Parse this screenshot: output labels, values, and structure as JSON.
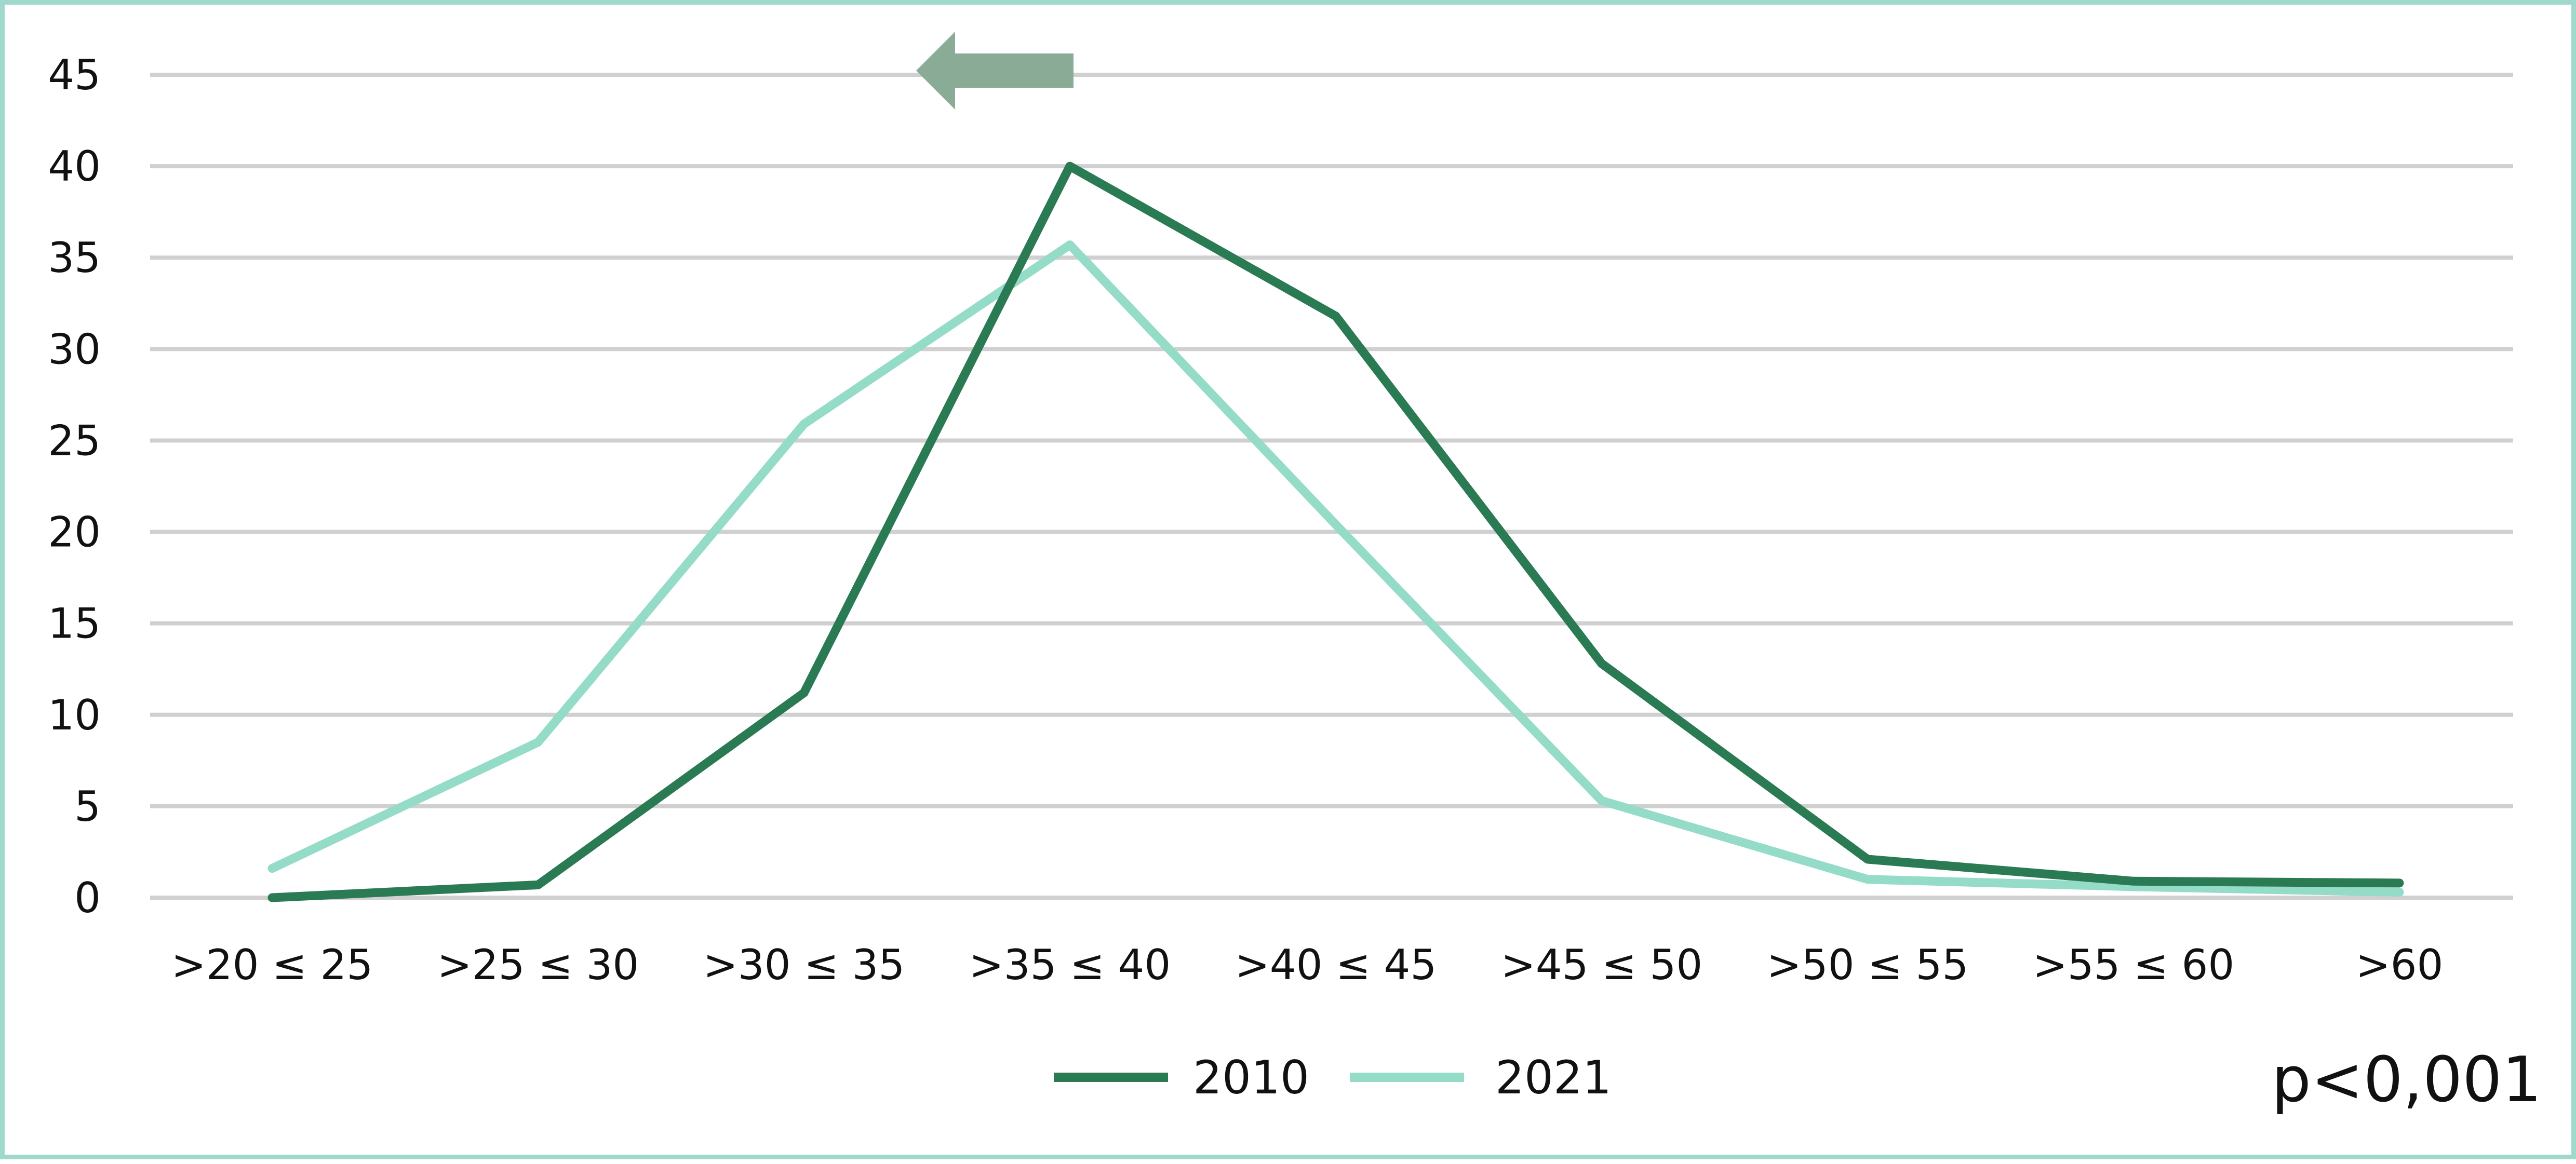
{
  "chart_data": {
    "type": "line",
    "categories": [
      ">20 ≤ 25",
      ">25 ≤ 30",
      ">30 ≤ 35",
      ">35 ≤ 40",
      ">40 ≤ 45",
      ">45 ≤ 50",
      ">50 ≤ 55",
      ">55 ≤ 60",
      ">60"
    ],
    "series": [
      {
        "name": "2010",
        "color": "#2a7a53",
        "values": [
          0,
          0.7,
          11.2,
          40,
          31.8,
          12.8,
          2.1,
          0.9,
          0.8
        ]
      },
      {
        "name": "2021",
        "color": "#94dbc8",
        "values": [
          1.6,
          8.5,
          25.9,
          35.7,
          20.4,
          5.3,
          1.0,
          0.6,
          0.3
        ]
      }
    ],
    "yticks": [
      "0",
      "5",
      "10",
      "15",
      "20",
      "25",
      "30",
      "35",
      "40",
      "45"
    ],
    "ylim": [
      0,
      45
    ],
    "grid": true,
    "legend_position": "bottom-center",
    "annotation": "p<0,001",
    "arrow": {
      "direction": "left",
      "color": "#8aab96",
      "x_category": ">35 ≤ 40",
      "y_value": 45
    }
  }
}
